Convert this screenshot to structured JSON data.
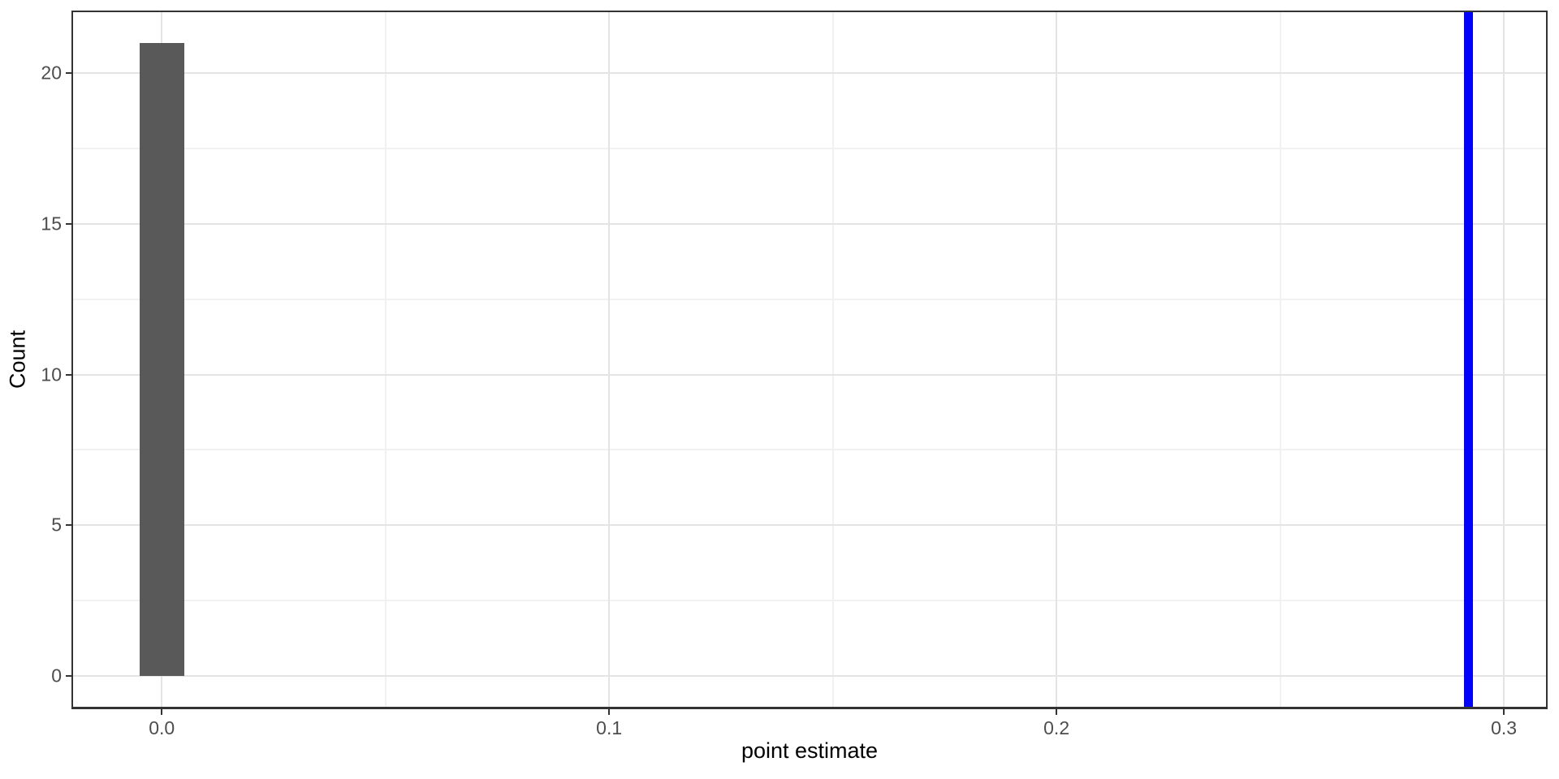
{
  "chart_data": {
    "type": "bar",
    "subtype": "histogram",
    "title": "",
    "xlabel": "point estimate",
    "ylabel": "Count",
    "bars": [
      {
        "x_center": 0.0,
        "bin_width": 0.01,
        "count": 21
      }
    ],
    "vline": {
      "x": 0.292,
      "color": "#0000ff",
      "stroke_px": 11
    },
    "bar_fill": "#595959",
    "x_ticks": [
      0.0,
      0.1,
      0.2,
      0.3
    ],
    "x_tick_labels": [
      "0.0",
      "0.1",
      "0.2",
      "0.3"
    ],
    "x_minor_ticks": [
      0.05,
      0.15,
      0.25
    ],
    "y_ticks": [
      0,
      5,
      10,
      15,
      20
    ],
    "y_tick_labels": [
      "0",
      "5",
      "10",
      "15",
      "20"
    ],
    "y_minor_ticks": [
      2.5,
      7.5,
      12.5,
      17.5
    ],
    "xlim": [
      -0.02,
      0.3096
    ],
    "ylim": [
      -1.05,
      22.05
    ],
    "grid": {
      "show_major": true,
      "show_minor": true,
      "major_color": "#e4e4e4",
      "minor_color": "#f1f1f1"
    },
    "legend": "none",
    "colors": {
      "panel_border": "#333333",
      "tick_mark": "#333333",
      "tick_label": "#4d4d4d",
      "axis_title": "#000000",
      "background": "#ffffff"
    }
  }
}
